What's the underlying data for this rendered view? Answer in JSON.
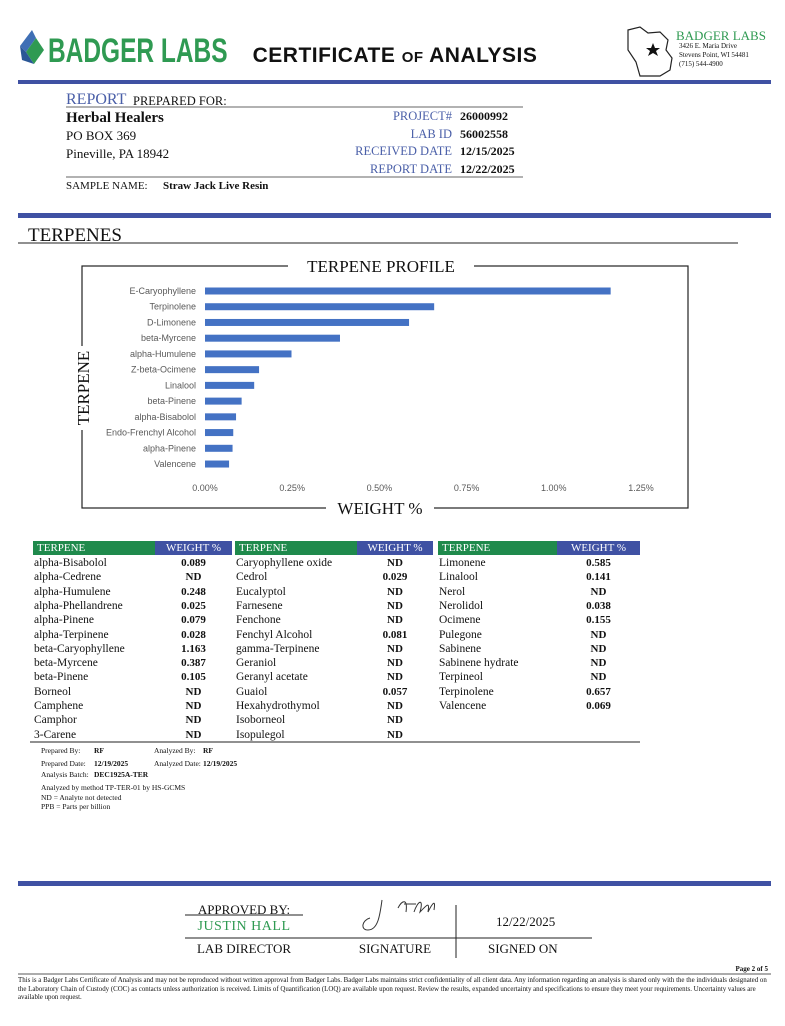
{
  "header": {
    "brand": "BADGER LABS",
    "title": "CERTIFICATE of ANALYSIS",
    "lab_name": "BADGER LABS",
    "lab_address": [
      "3426 E. Maria Drive",
      "Stevens Point, WI 54481",
      "(715) 544-4900"
    ]
  },
  "report": {
    "label_report": "REPORT",
    "label_prepared": "PREPARED FOR:",
    "client": "Herbal Healers",
    "client_address": [
      "PO BOX 369",
      "Pineville, PA 18942"
    ],
    "fields": [
      {
        "label": "PROJECT#",
        "value": "26000992"
      },
      {
        "label": "LAB ID",
        "value": "56002558"
      },
      {
        "label": "RECEIVED DATE",
        "value": "12/15/2025"
      },
      {
        "label": "REPORT DATE",
        "value": "12/22/2025"
      }
    ],
    "sample_label": "SAMPLE NAME:",
    "sample_name": "Straw Jack Live Resin"
  },
  "section_title": "TERPENES",
  "chart_data": {
    "type": "bar",
    "orientation": "horizontal",
    "title": "TERPENE PROFILE",
    "x_label": "WEIGHT %",
    "y_label": "TERPENE",
    "categories": [
      "E-Caryophyllene",
      "Terpinolene",
      "D-Limonene",
      "beta-Myrcene",
      "alpha-Humulene",
      "Z-beta-Ocimene",
      "Linalool",
      "beta-Pinene",
      "alpha-Bisabolol",
      "Endo-Frenchyl Alcohol",
      "alpha-Pinene",
      "Valencene"
    ],
    "values": [
      1.163,
      0.657,
      0.585,
      0.387,
      0.248,
      0.155,
      0.141,
      0.105,
      0.089,
      0.081,
      0.079,
      0.069
    ],
    "color": "#4472c4",
    "xlim": [
      0,
      1.25
    ],
    "xticks": [
      {
        "value": 0,
        "label": "0.00%"
      },
      {
        "value": 0.25,
        "label": "0.25%"
      },
      {
        "value": 0.5,
        "label": "0.50%"
      },
      {
        "value": 0.75,
        "label": "0.75%"
      },
      {
        "value": 1,
        "label": "1.00%"
      },
      {
        "value": 1.25,
        "label": "1.25%"
      }
    ]
  },
  "table": {
    "headers": [
      "TERPENE",
      "WEIGHT %"
    ],
    "columns": [
      {
        "rows": [
          [
            "alpha-Bisabolol",
            "0.089"
          ],
          [
            "alpha-Cedrene",
            "ND"
          ],
          [
            "alpha-Humulene",
            "0.248"
          ],
          [
            "alpha-Phellandrene",
            "0.025"
          ],
          [
            "alpha-Pinene",
            "0.079"
          ],
          [
            "alpha-Terpinene",
            "0.028"
          ],
          [
            "beta-Caryophyllene",
            "1.163"
          ],
          [
            "beta-Myrcene",
            "0.387"
          ],
          [
            "beta-Pinene",
            "0.105"
          ],
          [
            "Borneol",
            "ND"
          ],
          [
            "Camphene",
            "ND"
          ],
          [
            "Camphor",
            "ND"
          ],
          [
            "3-Carene",
            "ND"
          ]
        ]
      },
      {
        "rows": [
          [
            "Caryophyllene oxide",
            "ND"
          ],
          [
            "Cedrol",
            "0.029"
          ],
          [
            "Eucalyptol",
            "ND"
          ],
          [
            "Farnesene",
            "ND"
          ],
          [
            "Fenchone",
            "ND"
          ],
          [
            "Fenchyl Alcohol",
            "0.081"
          ],
          [
            "gamma-Terpinene",
            "ND"
          ],
          [
            "Geraniol",
            "ND"
          ],
          [
            "Geranyl acetate",
            "ND"
          ],
          [
            "Guaiol",
            "0.057"
          ],
          [
            "Hexahydrothymol",
            "ND"
          ],
          [
            "Isoborneol",
            "ND"
          ],
          [
            "Isopulegol",
            "ND"
          ]
        ]
      },
      {
        "rows": [
          [
            "Limonene",
            "0.585"
          ],
          [
            "Linalool",
            "0.141"
          ],
          [
            "Nerol",
            "ND"
          ],
          [
            "Nerolidol",
            "0.038"
          ],
          [
            "Ocimene",
            "0.155"
          ],
          [
            "Pulegone",
            "ND"
          ],
          [
            "Sabinene",
            "ND"
          ],
          [
            "Sabinene hydrate",
            "ND"
          ],
          [
            "Terpineol",
            "ND"
          ],
          [
            "Terpinolene",
            "0.657"
          ],
          [
            "Valencene",
            "0.069"
          ]
        ]
      }
    ]
  },
  "notes": {
    "prepared_by_label": "Prepared By:",
    "prepared_by": "RF",
    "analyzed_by_label": "Analyzed By:",
    "analyzed_by": "RF",
    "prepared_date_label": "Prepared Date:",
    "prepared_date": "12/19/2025",
    "analyzed_date_label": "Analyzed Date:",
    "analyzed_date": "12/19/2025",
    "batch_label": "Analysis Batch:",
    "batch": "DEC1925A-TER",
    "lines": [
      "Analyzed by method TP-TER-01 by HS-GCMS",
      "ND = Analyte not detected",
      "PPB = Parts per billion"
    ]
  },
  "signoff": {
    "approved_label": "APPROVED BY:",
    "name": "JUSTIN HALL",
    "role": "LAB DIRECTOR",
    "signature_label": "SIGNATURE",
    "date": "12/22/2025",
    "signed_label": "SIGNED ON"
  },
  "footer": {
    "page": "Page 2 of 5",
    "disclaimer": "This is a Badger Labs Certificate of Analysis and may not be reproduced without written approval from Badger Labs. Badger Labs maintains strict confidentiality of all client data. Any information regarding an analysis is shared only with the the individuals designated on the Laboratory Chain of Custody (COC) as contacts unless authorization is received. Limits of Quantification (LOQ) are available upon request. Review the results, expanded uncertainty and specifications to ensure they meet your requirements. Uncertainty values are available upon request."
  }
}
